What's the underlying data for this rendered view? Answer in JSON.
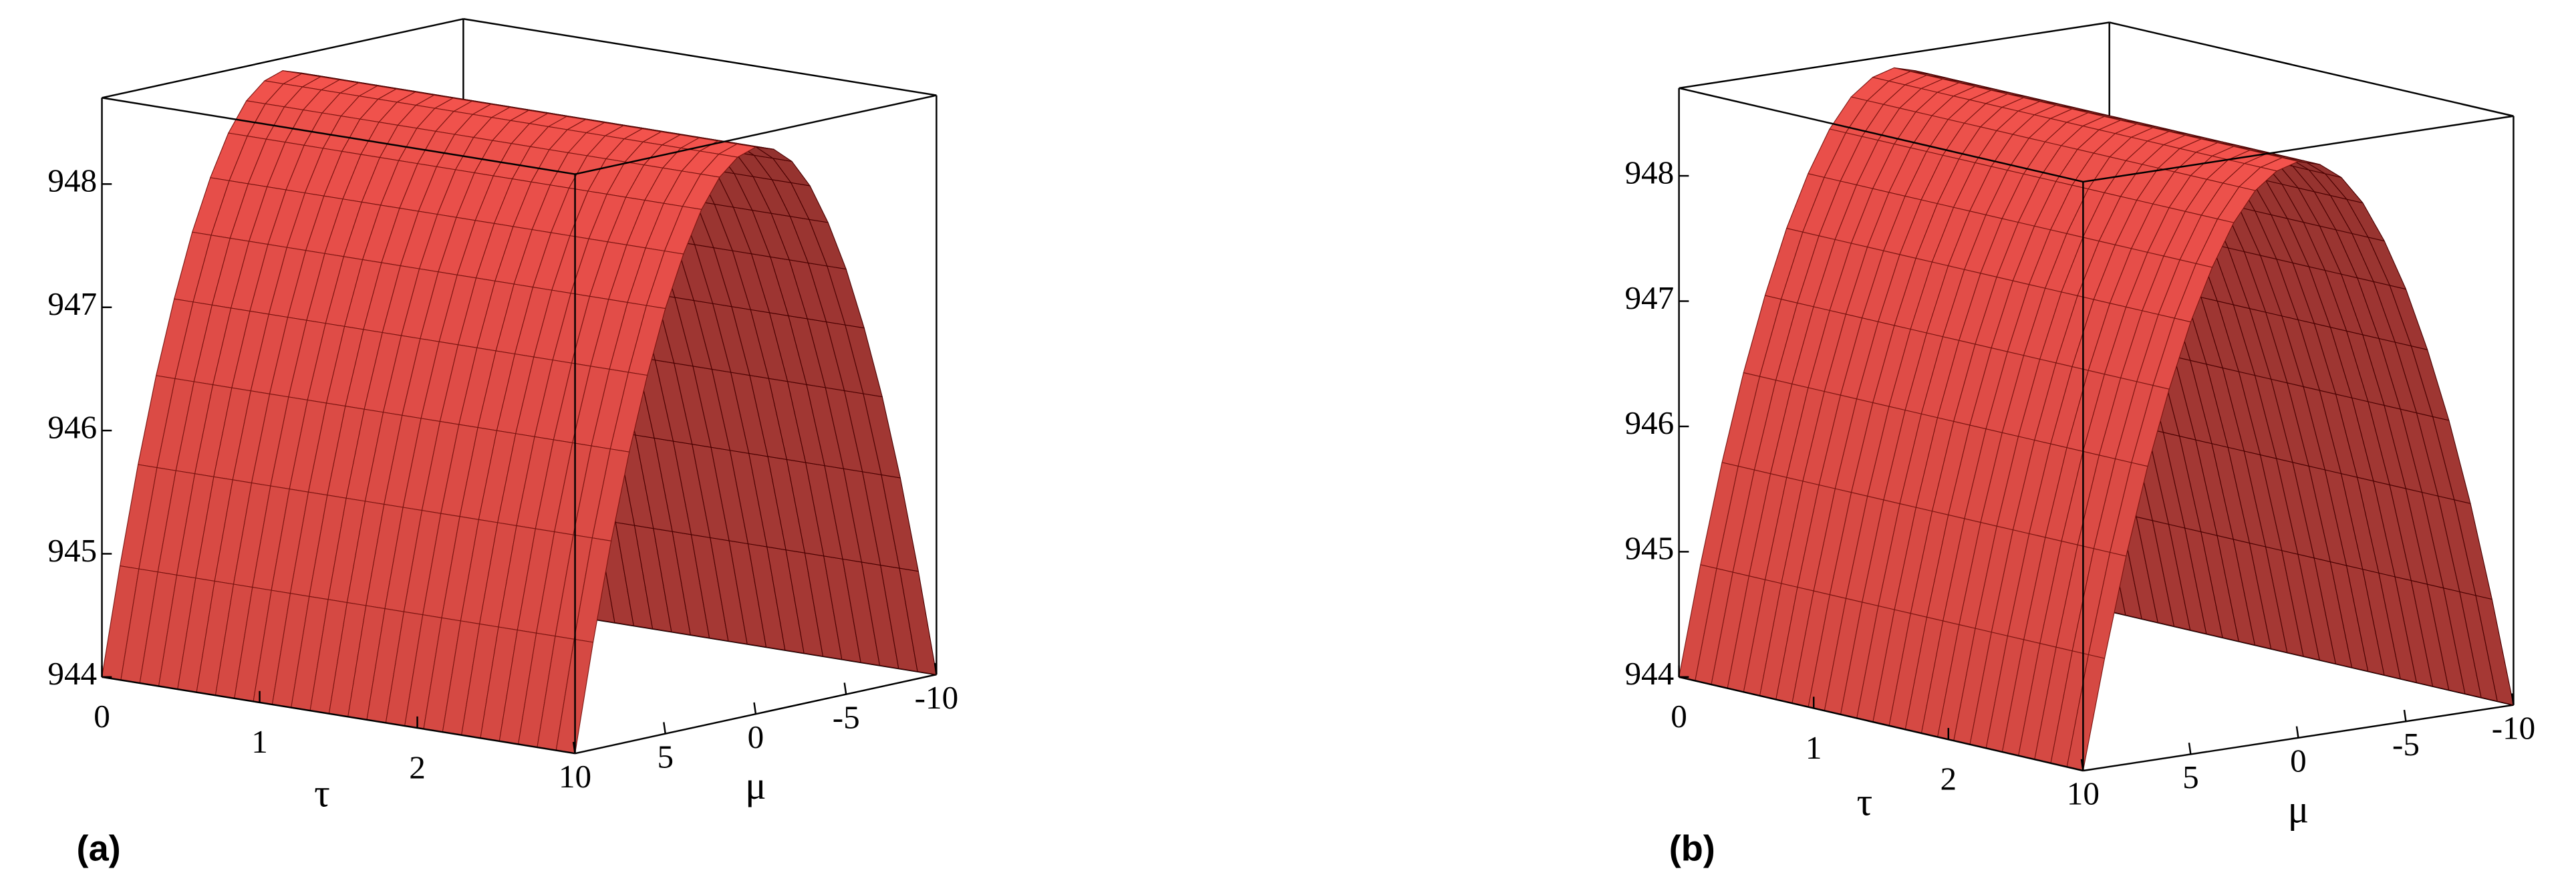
{
  "chart_data": [
    {
      "type": "surface",
      "label": "(a)",
      "xlabel": "τ",
      "ylabel": "μ",
      "xlim": [
        0,
        3
      ],
      "xticks": [
        0,
        1,
        2
      ],
      "ylim": [
        10,
        -10
      ],
      "yticks": [
        10,
        5,
        0,
        -5,
        -10
      ],
      "zlim": [
        944,
        948.7
      ],
      "zticks": [
        944,
        945,
        946,
        947,
        948
      ],
      "y": [
        -10,
        -9,
        -8,
        -7,
        -6,
        -5,
        -4,
        -3,
        -2,
        -1,
        0,
        1,
        2,
        3,
        4,
        5,
        6,
        7,
        8,
        9,
        10
      ],
      "values": [
        944.0,
        944.87,
        945.66,
        946.35,
        946.94,
        947.45,
        947.86,
        948.19,
        948.42,
        948.55,
        948.6,
        948.55,
        948.42,
        948.19,
        947.86,
        947.45,
        946.94,
        946.35,
        945.66,
        944.87,
        944.0
      ],
      "color": "#f0524c"
    },
    {
      "type": "surface",
      "label": "(b)",
      "xlabel": "τ",
      "ylabel": "μ",
      "xlim": [
        0,
        3
      ],
      "xticks": [
        0,
        1,
        2
      ],
      "ylim": [
        10,
        -10
      ],
      "yticks": [
        10,
        5,
        0,
        -5,
        -10
      ],
      "zlim": [
        944,
        948.7
      ],
      "zticks": [
        944,
        945,
        946,
        947,
        948
      ],
      "y": [
        -10,
        -9,
        -8,
        -7,
        -6,
        -5,
        -4,
        -3,
        -2,
        -1,
        0,
        1,
        2,
        3,
        4,
        5,
        6,
        7,
        8,
        9,
        10
      ],
      "values": [
        944.0,
        944.87,
        945.66,
        946.35,
        946.94,
        947.45,
        947.86,
        948.19,
        948.42,
        948.55,
        948.6,
        948.55,
        948.42,
        948.19,
        947.86,
        947.45,
        946.94,
        946.35,
        945.66,
        944.87,
        944.0
      ],
      "color": "#f0524c"
    }
  ]
}
